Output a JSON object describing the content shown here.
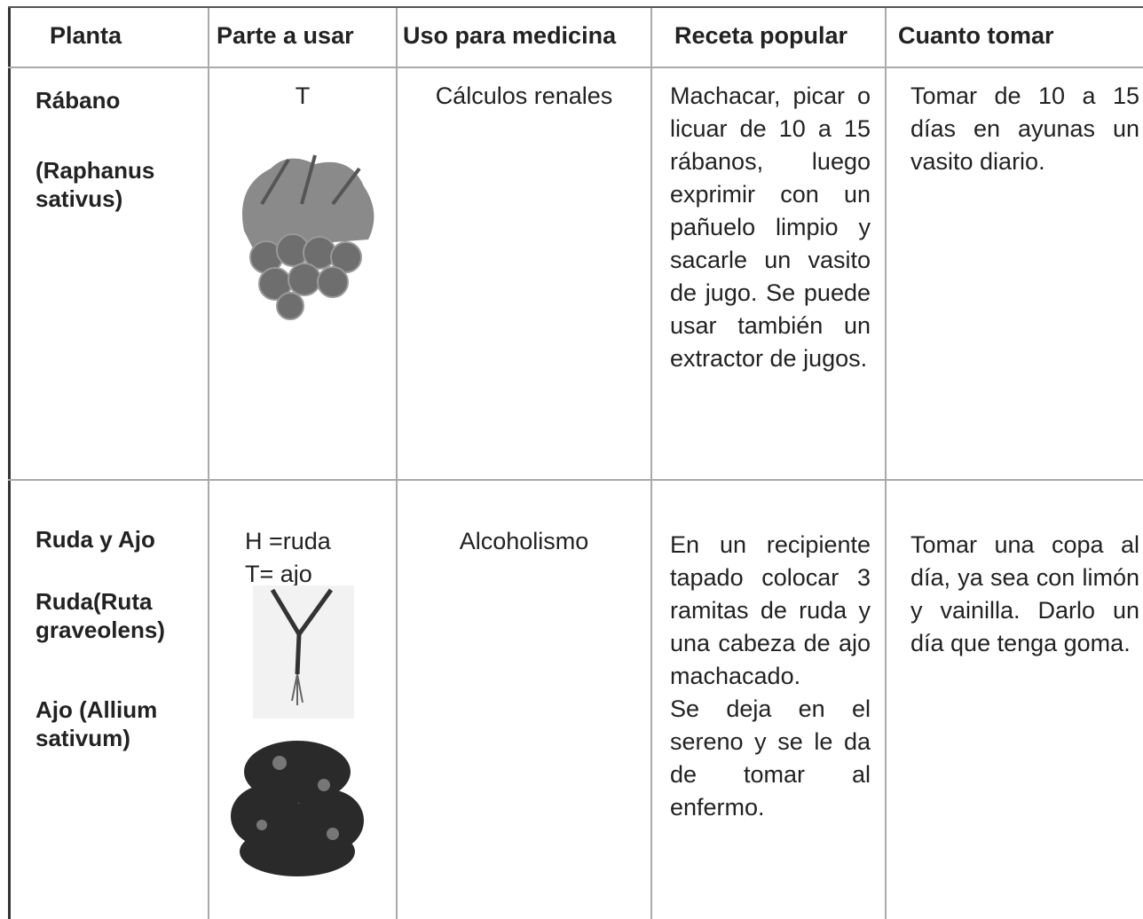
{
  "table": {
    "header": [
      "Planta",
      "Parte a usar",
      "Uso para medicina",
      "Receta popular",
      "Cuanto tomar"
    ],
    "rows": [
      {
        "planta": [
          "Rábano",
          "(Raphanus sativus)"
        ],
        "parte": [
          "T"
        ],
        "uso": "Cálculos renales",
        "receta": [
          "Machacar, picar o licuar de 10 a 15 rábanos, luego exprimir con un pañuelo limpio y sacarle un vasito de jugo. Se puede usar también un extractor de jugos."
        ],
        "cuanto": "Tomar de 10 a 15 días en ayunas un vasito diario."
      },
      {
        "planta": [
          "Ruda y Ajo",
          "Ruda(Ruta graveolens)",
          "Ajo (Allium sativum)"
        ],
        "parte": [
          "H =ruda",
          "T= ajo"
        ],
        "uso": "Alcoholismo",
        "receta": [
          "En un recipiente tapado colocar 3 ramitas de ruda y una cabeza de ajo machacado.",
          "Se deja en el sereno y se le da de tomar al enfermo."
        ],
        "cuanto": "Tomar una copa al día, ya sea con limón y vainilla. Darlo un día que tenga goma."
      }
    ]
  }
}
